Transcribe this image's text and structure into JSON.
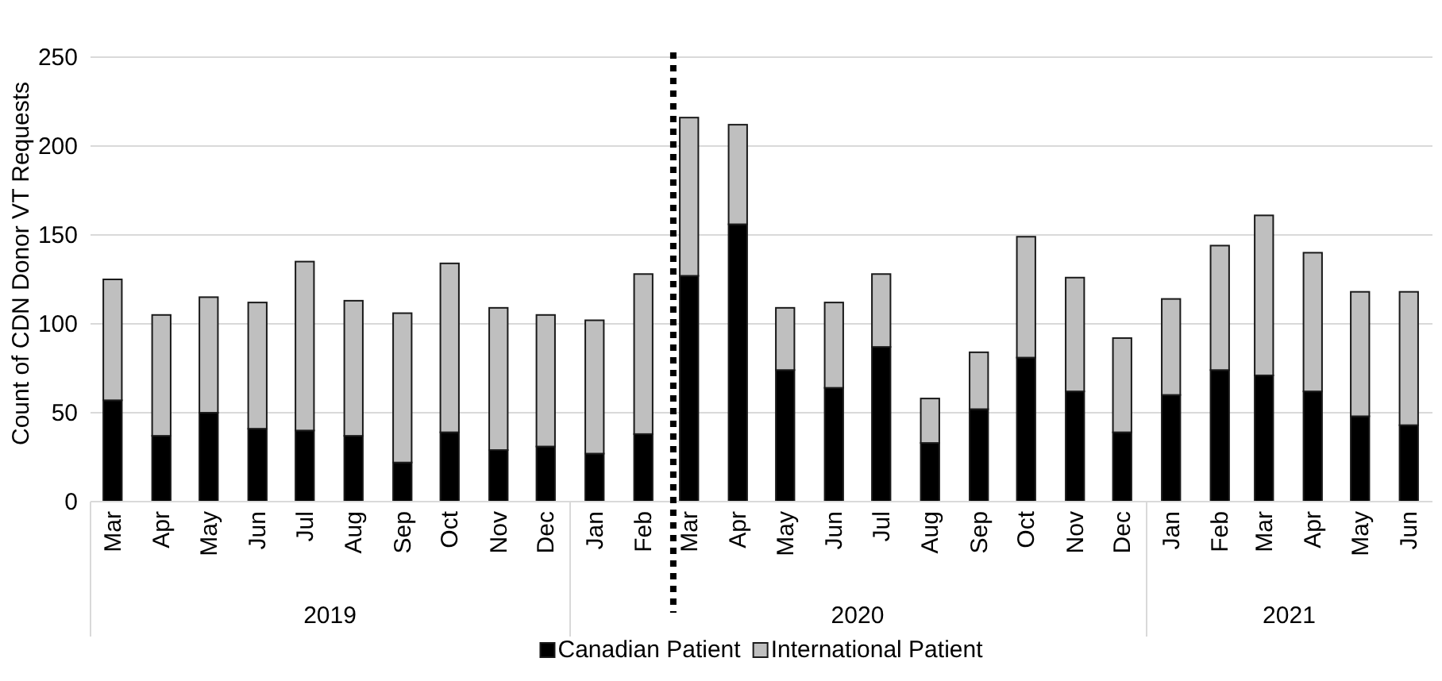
{
  "chart_data": {
    "type": "bar",
    "stacked": true,
    "ylabel": "Count of CDN Donor VT Requests",
    "x": [
      "2019-03",
      "2019-04",
      "2019-05",
      "2019-06",
      "2019-07",
      "2019-08",
      "2019-09",
      "2019-10",
      "2019-11",
      "2019-12",
      "2020-01",
      "2020-02",
      "2020-03",
      "2020-04",
      "2020-05",
      "2020-06",
      "2020-07",
      "2020-08",
      "2020-09",
      "2020-10",
      "2020-11",
      "2020-12",
      "2021-01",
      "2021-02",
      "2021-03",
      "2021-04",
      "2021-05",
      "2021-06"
    ],
    "series": [
      {
        "name": "Canadian Patient",
        "color": "#000000",
        "values": [
          57,
          37,
          50,
          41,
          40,
          37,
          22,
          39,
          29,
          31,
          27,
          38,
          127,
          156,
          74,
          64,
          87,
          33,
          52,
          81,
          62,
          39,
          60,
          74,
          71,
          62,
          48,
          43
        ]
      },
      {
        "name": "International Patient",
        "color": "#bfbfbf",
        "values": [
          68,
          68,
          65,
          71,
          95,
          76,
          84,
          95,
          80,
          74,
          75,
          90,
          89,
          56,
          35,
          48,
          41,
          25,
          32,
          68,
          64,
          53,
          54,
          70,
          90,
          78,
          70,
          75
        ]
      }
    ],
    "xlim": [
      "2019-02-15",
      "2021-06-16"
    ],
    "xticks": [
      {
        "value": "2019-03",
        "label": "Mar"
      },
      {
        "value": "2019-04",
        "label": "Apr"
      },
      {
        "value": "2019-05",
        "label": "May"
      },
      {
        "value": "2019-06",
        "label": "Jun"
      },
      {
        "value": "2019-07",
        "label": "Jul"
      },
      {
        "value": "2019-08",
        "label": "Aug"
      },
      {
        "value": "2019-09",
        "label": "Sep"
      },
      {
        "value": "2019-10",
        "label": "Oct"
      },
      {
        "value": "2019-11",
        "label": "Nov"
      },
      {
        "value": "2019-12",
        "label": "Dec"
      },
      {
        "value": "2020-01",
        "label": "Jan"
      },
      {
        "value": "2020-02",
        "label": "Feb"
      },
      {
        "value": "2020-03",
        "label": "Mar"
      },
      {
        "value": "2020-04",
        "label": "Apr"
      },
      {
        "value": "2020-05",
        "label": "May"
      },
      {
        "value": "2020-06",
        "label": "Jun"
      },
      {
        "value": "2020-07",
        "label": "Jul"
      },
      {
        "value": "2020-08",
        "label": "Aug"
      },
      {
        "value": "2020-09",
        "label": "Sep"
      },
      {
        "value": "2020-10",
        "label": "Oct"
      },
      {
        "value": "2020-11",
        "label": "Nov"
      },
      {
        "value": "2020-12",
        "label": "Dec"
      },
      {
        "value": "2021-01",
        "label": "Jan"
      },
      {
        "value": "2021-02",
        "label": "Feb"
      },
      {
        "value": "2021-03",
        "label": "Mar"
      },
      {
        "value": "2021-04",
        "label": "Apr"
      },
      {
        "value": "2021-05",
        "label": "May"
      },
      {
        "value": "2021-06",
        "label": "Jun"
      }
    ],
    "x2lim": [
      "2019-02-15",
      "2021-06-16"
    ],
    "x2ticks": [
      {
        "value": "2019-07-17",
        "label": "2019"
      },
      {
        "value": "2020-06-16",
        "label": "2020"
      },
      {
        "value": "2021-03-17",
        "label": "2021"
      }
    ],
    "ylim": [
      0,
      250
    ],
    "yticks": [
      0,
      50,
      100,
      150,
      200,
      250
    ],
    "grid": "y",
    "legend": "bottom",
    "ref_lines": [
      {
        "axis": "x",
        "value": "2020-02-20",
        "line_style": "dotted",
        "color": "#000000"
      }
    ]
  }
}
